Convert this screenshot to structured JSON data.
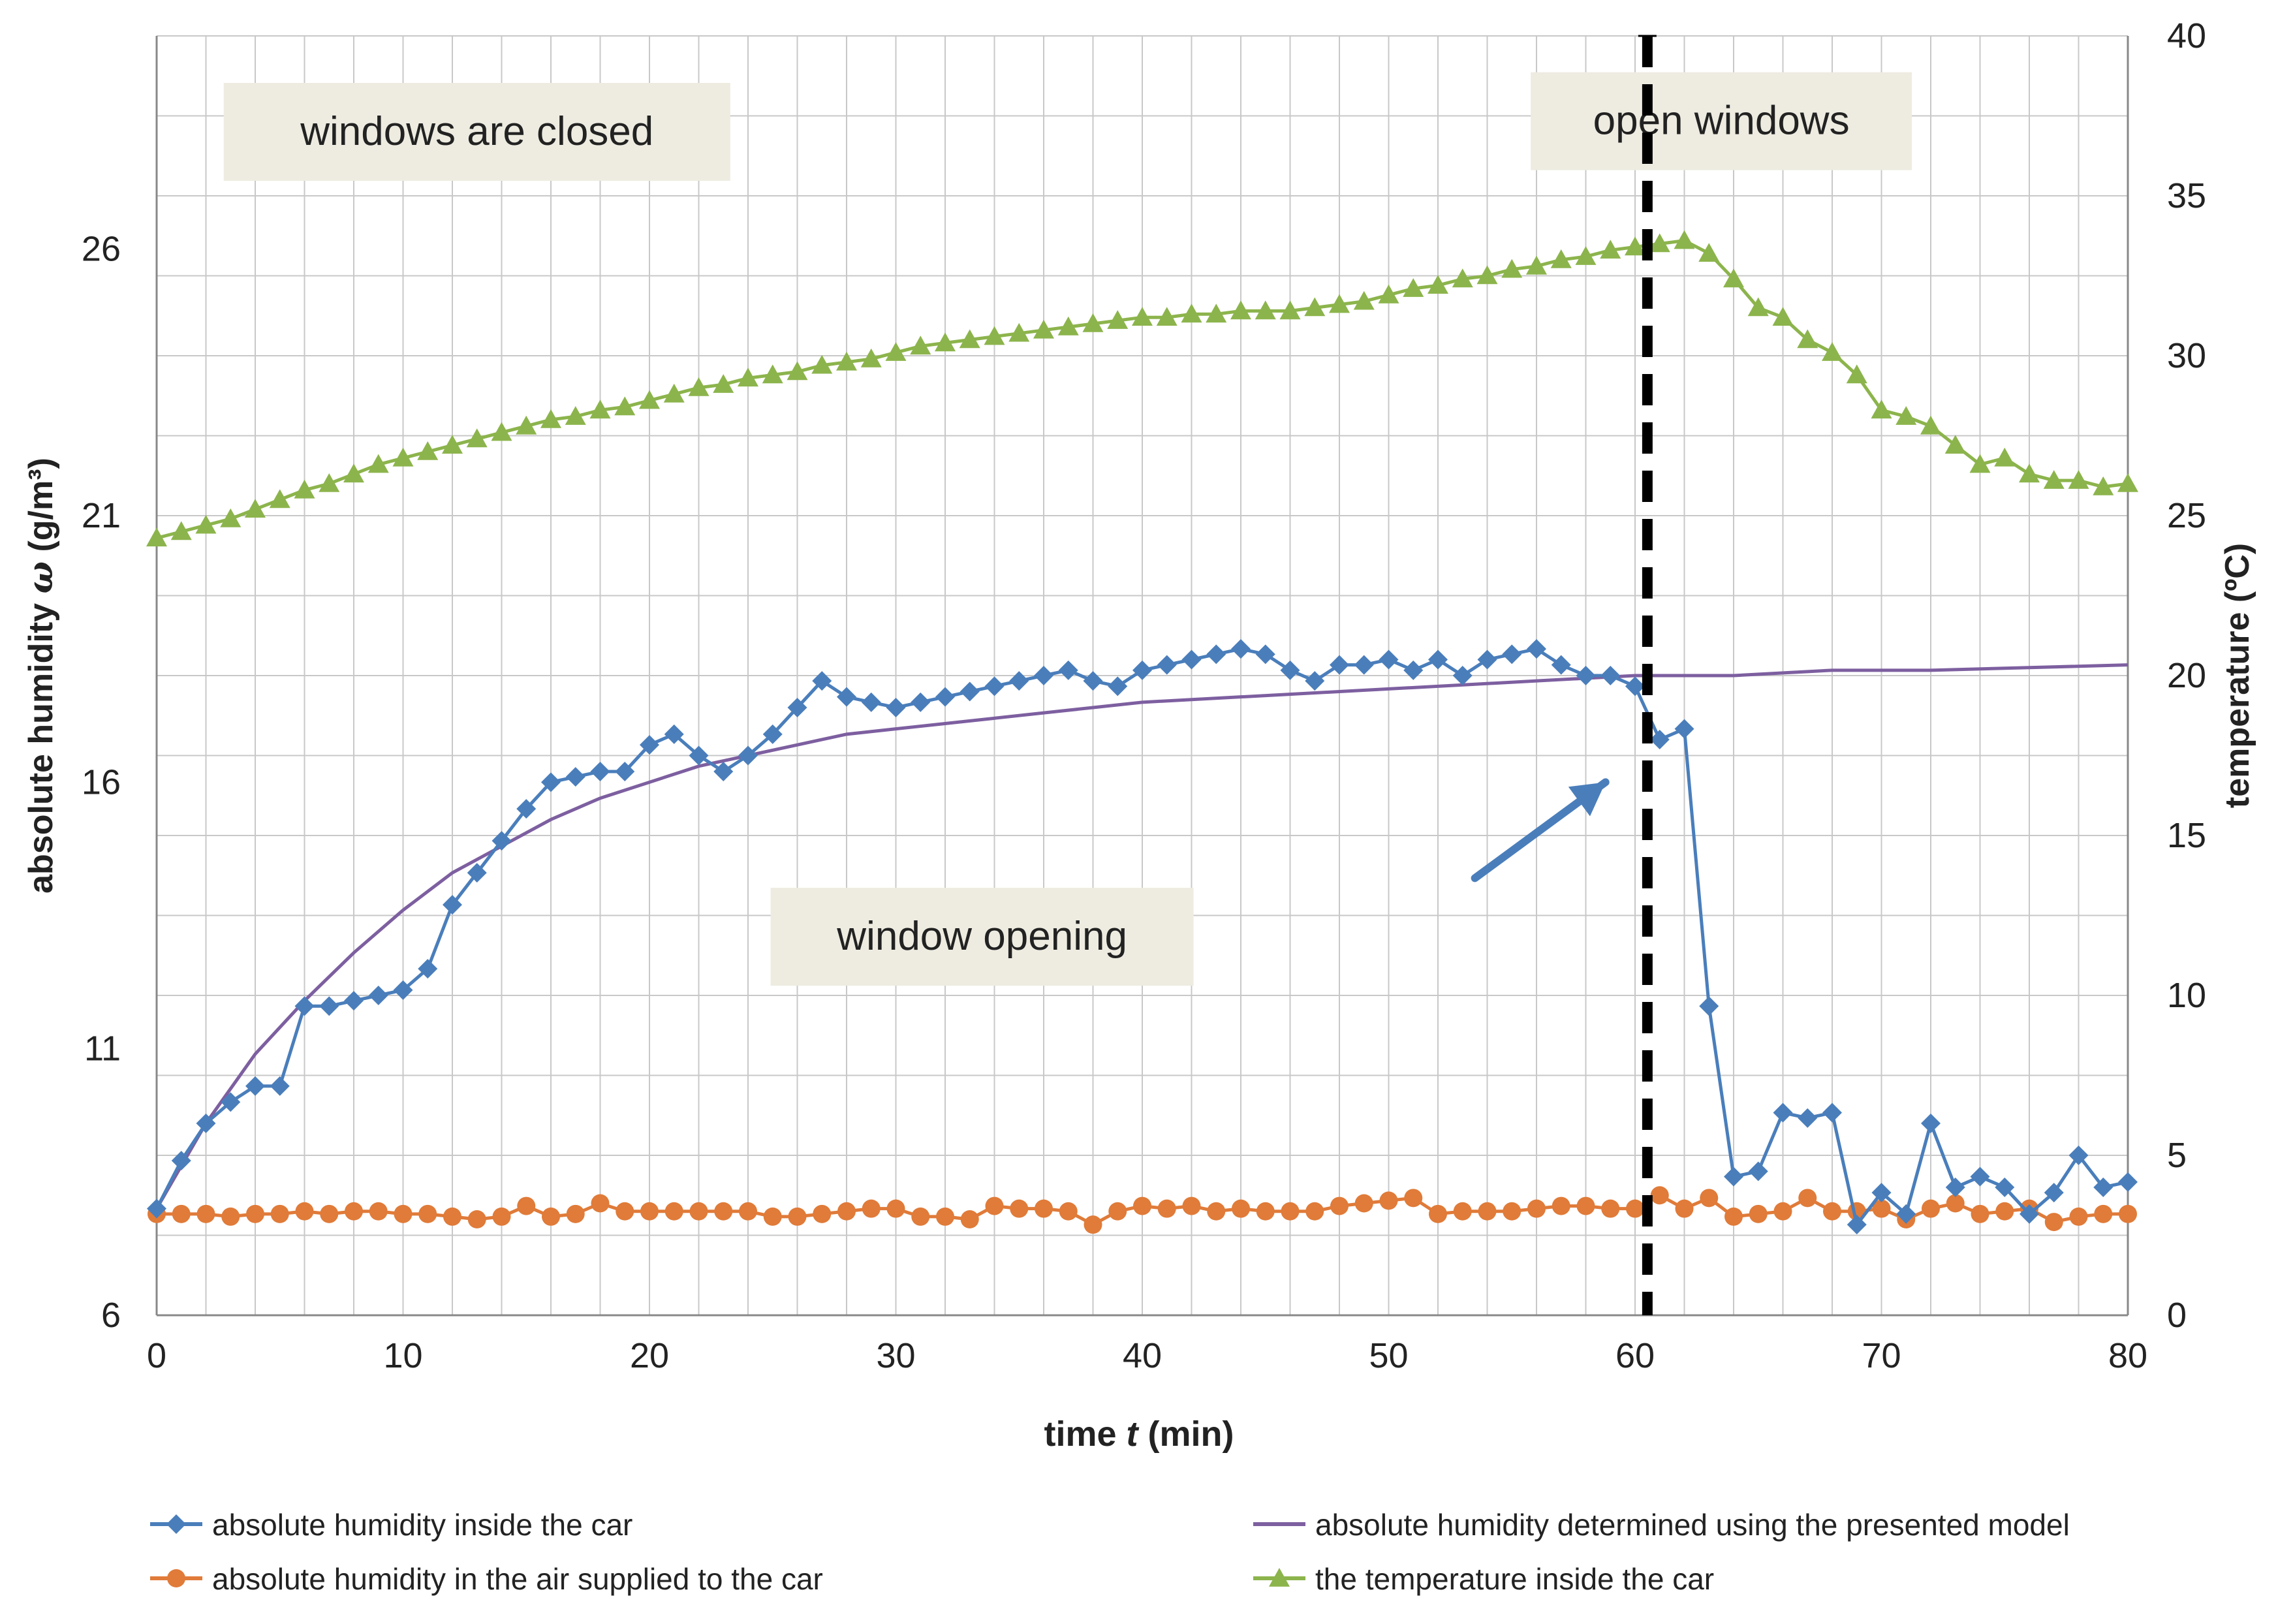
{
  "chart_data": {
    "type": "line",
    "title": "",
    "xlabel_prefix": "time ",
    "xlabel_var": "t",
    "xlabel_suffix": " (min)",
    "ylabel_prefix": "absolute humidity ",
    "ylabel_var": "ω",
    "ylabel_suffix": " (g/m³)",
    "y2label": "temperature (ºC)",
    "xlim": [
      0,
      80
    ],
    "ylim": [
      6,
      30
    ],
    "y2lim": [
      0,
      40
    ],
    "xticks": [
      0,
      10,
      20,
      30,
      40,
      50,
      60,
      70,
      80
    ],
    "yticks": [
      6,
      11,
      16,
      21,
      26
    ],
    "y2ticks": [
      0,
      5,
      10,
      15,
      20,
      25,
      30,
      35,
      40
    ],
    "grid": true,
    "legend_position": "bottom",
    "vline": {
      "x": 60.5,
      "style": "dashed"
    },
    "annotations": [
      {
        "text": "windows are closed",
        "x": 13,
        "y": 28.2,
        "axis": "left"
      },
      {
        "text": "open windows",
        "x": 63.5,
        "y": 28.4,
        "axis": "left"
      },
      {
        "text": "window opening",
        "x": 33.5,
        "y": 13.1,
        "axis": "left"
      }
    ],
    "arrow": {
      "from": [
        53.5,
        14.2
      ],
      "to": [
        58.8,
        16.0
      ],
      "axis": "left"
    },
    "series": [
      {
        "name": "absolute humidity inside the car",
        "axis": "left",
        "color": "#4a7ebb",
        "marker": "diamond",
        "x": [
          0,
          1,
          2,
          3,
          4,
          5,
          6,
          7,
          8,
          9,
          10,
          11,
          12,
          13,
          14,
          15,
          16,
          17,
          18,
          19,
          20,
          21,
          22,
          23,
          24,
          25,
          26,
          27,
          28,
          29,
          30,
          31,
          32,
          33,
          34,
          35,
          36,
          37,
          38,
          39,
          40,
          41,
          42,
          43,
          44,
          45,
          46,
          47,
          48,
          49,
          50,
          51,
          52,
          53,
          54,
          55,
          56,
          57,
          58,
          59,
          60,
          61,
          62,
          63,
          64,
          65,
          66,
          67,
          68,
          69,
          70,
          71,
          72,
          73,
          74,
          75,
          76,
          77,
          78,
          79,
          80
        ],
        "values": [
          8.0,
          8.9,
          9.6,
          10.0,
          10.3,
          10.3,
          11.8,
          11.8,
          11.9,
          12.0,
          12.1,
          12.5,
          13.7,
          14.3,
          14.9,
          15.5,
          16.0,
          16.1,
          16.2,
          16.2,
          16.7,
          16.9,
          16.5,
          16.2,
          16.5,
          16.9,
          17.4,
          17.9,
          17.6,
          17.5,
          17.4,
          17.5,
          17.6,
          17.7,
          17.8,
          17.9,
          18.0,
          18.1,
          17.9,
          17.8,
          18.1,
          18.2,
          18.3,
          18.4,
          18.5,
          18.4,
          18.1,
          17.9,
          18.2,
          18.2,
          18.3,
          18.1,
          18.3,
          18.0,
          18.3,
          18.4,
          18.5,
          18.2,
          18.0,
          18.0,
          17.8,
          16.8,
          17.0,
          11.8,
          8.6,
          8.7,
          9.8,
          9.7,
          9.8,
          7.7,
          8.3,
          7.9,
          9.6,
          8.4,
          8.6,
          8.4,
          7.9,
          8.3,
          9.0,
          8.4,
          8.5
        ]
      },
      {
        "name": "absolute humidity determined using the presented model",
        "axis": "left",
        "color": "#7d5fa0",
        "marker": "none",
        "x": [
          0,
          2,
          4,
          6,
          8,
          10,
          12,
          14,
          16,
          18,
          20,
          22,
          24,
          26,
          28,
          30,
          32,
          34,
          36,
          38,
          40,
          44,
          48,
          52,
          56,
          60,
          64,
          68,
          72,
          76,
          80
        ],
        "values": [
          8.0,
          9.6,
          10.9,
          11.9,
          12.8,
          13.6,
          14.3,
          14.8,
          15.3,
          15.7,
          16.0,
          16.3,
          16.5,
          16.7,
          16.9,
          17.0,
          17.1,
          17.2,
          17.3,
          17.4,
          17.5,
          17.6,
          17.7,
          17.8,
          17.9,
          18.0,
          18.0,
          18.1,
          18.1,
          18.15,
          18.2
        ]
      },
      {
        "name": "absolute humidity in the air supplied to the car",
        "axis": "left",
        "color": "#e07b39",
        "marker": "circle",
        "x": [
          0,
          1,
          2,
          3,
          4,
          5,
          6,
          7,
          8,
          9,
          10,
          11,
          12,
          13,
          14,
          15,
          16,
          17,
          18,
          19,
          20,
          21,
          22,
          23,
          24,
          25,
          26,
          27,
          28,
          29,
          30,
          31,
          32,
          33,
          34,
          35,
          36,
          37,
          38,
          39,
          40,
          41,
          42,
          43,
          44,
          45,
          46,
          47,
          48,
          49,
          50,
          51,
          52,
          53,
          54,
          55,
          56,
          57,
          58,
          59,
          60,
          61,
          62,
          63,
          64,
          65,
          66,
          67,
          68,
          69,
          70,
          71,
          72,
          73,
          74,
          75,
          76,
          77,
          78,
          79,
          80
        ],
        "values": [
          7.9,
          7.9,
          7.9,
          7.85,
          7.9,
          7.9,
          7.95,
          7.9,
          7.95,
          7.95,
          7.9,
          7.9,
          7.85,
          7.8,
          7.85,
          8.05,
          7.85,
          7.9,
          8.1,
          7.95,
          7.95,
          7.95,
          7.95,
          7.95,
          7.95,
          7.85,
          7.85,
          7.9,
          7.95,
          8.0,
          8.0,
          7.85,
          7.85,
          7.8,
          8.05,
          8.0,
          8.0,
          7.95,
          7.7,
          7.95,
          8.05,
          8.0,
          8.05,
          7.95,
          8.0,
          7.95,
          7.95,
          7.95,
          8.05,
          8.1,
          8.15,
          8.2,
          7.9,
          7.95,
          7.95,
          7.95,
          8.0,
          8.05,
          8.05,
          8.0,
          8.0,
          8.25,
          8.0,
          8.2,
          7.85,
          7.9,
          7.95,
          8.2,
          7.95,
          7.95,
          8.0,
          7.8,
          8.0,
          8.1,
          7.9,
          7.95,
          8.0,
          7.75,
          7.85,
          7.9,
          7.9
        ]
      },
      {
        "name": "the temperature inside the car",
        "axis": "right",
        "color": "#8cb44c",
        "marker": "triangle",
        "x": [
          0,
          1,
          2,
          3,
          4,
          5,
          6,
          7,
          8,
          9,
          10,
          11,
          12,
          13,
          14,
          15,
          16,
          17,
          18,
          19,
          20,
          21,
          22,
          23,
          24,
          25,
          26,
          27,
          28,
          29,
          30,
          31,
          32,
          33,
          34,
          35,
          36,
          37,
          38,
          39,
          40,
          41,
          42,
          43,
          44,
          45,
          46,
          47,
          48,
          49,
          50,
          51,
          52,
          53,
          54,
          55,
          56,
          57,
          58,
          59,
          60,
          61,
          62,
          63,
          64,
          65,
          66,
          67,
          68,
          69,
          70,
          71,
          72,
          73,
          74,
          75,
          76,
          77,
          78,
          79,
          80
        ],
        "values": [
          24.3,
          24.5,
          24.7,
          24.9,
          25.2,
          25.5,
          25.8,
          26.0,
          26.3,
          26.6,
          26.8,
          27.0,
          27.2,
          27.4,
          27.6,
          27.8,
          28.0,
          28.1,
          28.3,
          28.4,
          28.6,
          28.8,
          29.0,
          29.1,
          29.3,
          29.4,
          29.5,
          29.7,
          29.8,
          29.9,
          30.1,
          30.3,
          30.4,
          30.5,
          30.6,
          30.7,
          30.8,
          30.9,
          31.0,
          31.1,
          31.2,
          31.2,
          31.3,
          31.3,
          31.4,
          31.4,
          31.4,
          31.5,
          31.6,
          31.7,
          31.9,
          32.1,
          32.2,
          32.4,
          32.5,
          32.7,
          32.8,
          33.0,
          33.1,
          33.3,
          33.4,
          33.5,
          33.6,
          33.2,
          32.4,
          31.5,
          31.2,
          30.5,
          30.1,
          29.4,
          28.3,
          28.1,
          27.8,
          27.2,
          26.6,
          26.8,
          26.3,
          26.1,
          26.1,
          25.9,
          26.0
        ]
      }
    ]
  }
}
